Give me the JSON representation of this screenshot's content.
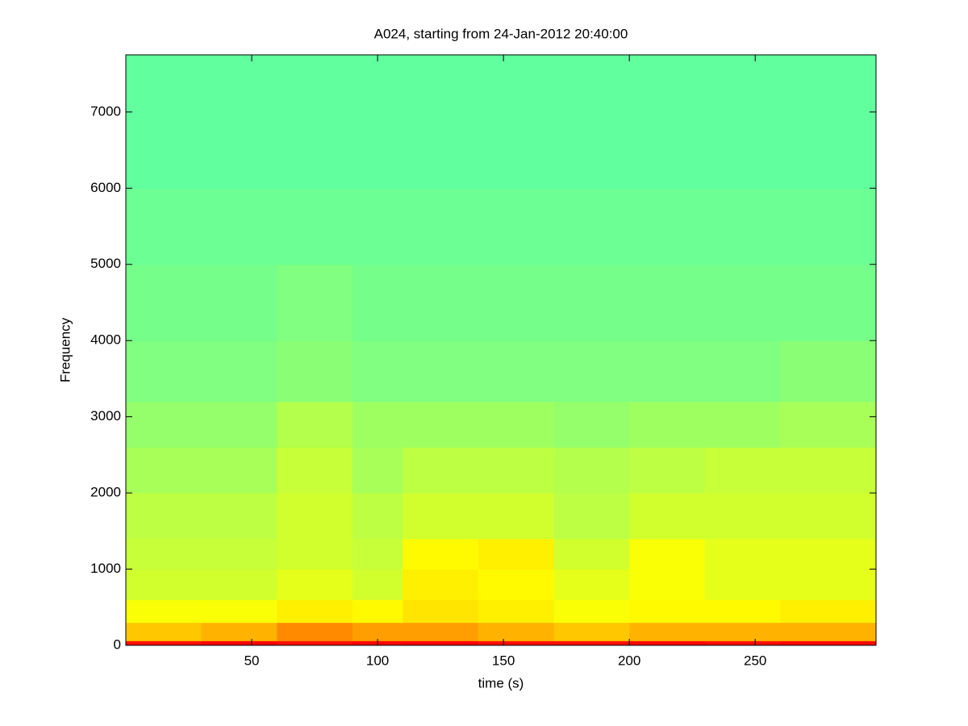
{
  "chart_data": {
    "type": "heatmap",
    "title": "A024, starting from 24-Jan-2012 20:40:00",
    "xlabel": "time (s)",
    "ylabel": "Frequency",
    "xlim": [
      0,
      298
    ],
    "ylim": [
      0,
      7750
    ],
    "xticks": [
      50,
      100,
      150,
      200,
      250
    ],
    "yticks": [
      0,
      1000,
      2000,
      3000,
      4000,
      5000,
      6000,
      7000
    ],
    "x_bins": [
      0,
      30,
      60,
      90,
      110,
      140,
      170,
      200,
      230,
      260,
      298
    ],
    "y_bins": [
      0,
      60,
      300,
      600,
      1000,
      1400,
      2000,
      2600,
      3200,
      4000,
      5000,
      6000,
      7750
    ],
    "colormap": "jet",
    "clim": [
      0,
      1
    ],
    "z": [
      [
        0.86,
        0.88,
        0.86,
        0.87,
        0.88,
        0.86,
        0.86,
        0.87,
        0.86,
        0.87
      ],
      [
        0.68,
        0.7,
        0.74,
        0.72,
        0.72,
        0.7,
        0.68,
        0.7,
        0.7,
        0.7
      ],
      [
        0.62,
        0.62,
        0.64,
        0.63,
        0.65,
        0.64,
        0.62,
        0.63,
        0.63,
        0.64
      ],
      [
        0.58,
        0.58,
        0.6,
        0.58,
        0.64,
        0.63,
        0.6,
        0.62,
        0.6,
        0.6
      ],
      [
        0.57,
        0.57,
        0.58,
        0.57,
        0.63,
        0.64,
        0.58,
        0.62,
        0.6,
        0.6
      ],
      [
        0.56,
        0.56,
        0.58,
        0.56,
        0.58,
        0.58,
        0.56,
        0.58,
        0.58,
        0.58
      ],
      [
        0.54,
        0.54,
        0.57,
        0.54,
        0.56,
        0.56,
        0.55,
        0.56,
        0.57,
        0.57
      ],
      [
        0.52,
        0.52,
        0.55,
        0.53,
        0.53,
        0.53,
        0.52,
        0.53,
        0.53,
        0.54
      ],
      [
        0.5,
        0.5,
        0.51,
        0.5,
        0.5,
        0.5,
        0.5,
        0.5,
        0.5,
        0.51
      ],
      [
        0.49,
        0.49,
        0.5,
        0.49,
        0.49,
        0.49,
        0.49,
        0.49,
        0.49,
        0.49
      ],
      [
        0.48,
        0.48,
        0.48,
        0.48,
        0.48,
        0.48,
        0.48,
        0.48,
        0.48,
        0.48
      ],
      [
        0.47,
        0.47,
        0.47,
        0.47,
        0.47,
        0.47,
        0.47,
        0.47,
        0.47,
        0.47
      ]
    ]
  }
}
